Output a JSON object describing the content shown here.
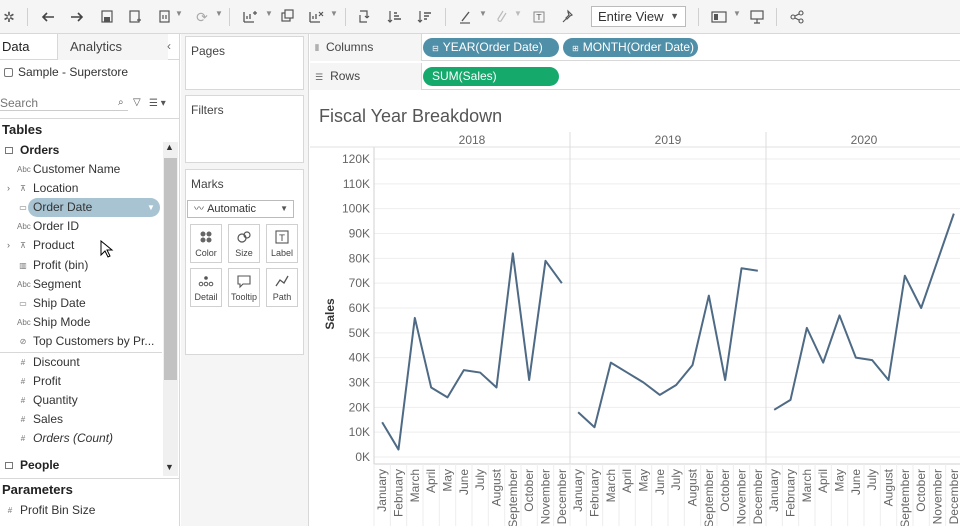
{
  "toolbar": {
    "view_mode": "Entire View"
  },
  "left_pane": {
    "tabs": [
      "Data",
      "Analytics"
    ],
    "data_source": "Sample - Superstore",
    "search_placeholder": "Search",
    "tables_heading": "Tables",
    "orders_group": "Orders",
    "fields": [
      {
        "label": "Customer Name",
        "icon": "Abc",
        "expand": ""
      },
      {
        "label": "Location",
        "icon": "⊼",
        "expand": "›"
      },
      {
        "label": "Order Date",
        "icon": "▭",
        "expand": ""
      },
      {
        "label": "Order ID",
        "icon": "Abc",
        "expand": ""
      },
      {
        "label": "Product",
        "icon": "⊼",
        "expand": "›"
      },
      {
        "label": "Profit (bin)",
        "icon": "▥",
        "expand": ""
      },
      {
        "label": "Segment",
        "icon": "Abc",
        "expand": ""
      },
      {
        "label": "Ship Date",
        "icon": "▭",
        "expand": ""
      },
      {
        "label": "Ship Mode",
        "icon": "Abc",
        "expand": ""
      },
      {
        "label": "Top Customers by Pr...",
        "icon": "⊘",
        "expand": ""
      }
    ],
    "measures": [
      {
        "label": "Discount",
        "icon": "#"
      },
      {
        "label": "Profit",
        "icon": "#"
      },
      {
        "label": "Quantity",
        "icon": "#"
      },
      {
        "label": "Sales",
        "icon": "#"
      },
      {
        "label": "Orders (Count)",
        "icon": "#"
      }
    ],
    "people_group": "People",
    "parameters_heading": "Parameters",
    "parameters": [
      {
        "label": "Profit Bin Size",
        "icon": "#"
      }
    ]
  },
  "cards": {
    "pages": "Pages",
    "filters": "Filters",
    "marks": "Marks",
    "marks_type": "Automatic",
    "mark_buttons": [
      "Color",
      "Size",
      "Label",
      "Detail",
      "Tooltip",
      "Path"
    ]
  },
  "shelves": {
    "columns_label": "Columns",
    "rows_label": "Rows",
    "column_pills": [
      "YEAR(Order Date)",
      "MONTH(Order Date)"
    ],
    "row_pills": [
      "SUM(Sales)"
    ]
  },
  "colors": {
    "line": "#4e6a85",
    "pill_dimension": "#4f8fa8",
    "pill_measure": "#15a96c"
  },
  "chart_data": {
    "type": "line",
    "title": "Fiscal Year Breakdown",
    "ylabel": "Sales",
    "ylim": [
      0,
      120000
    ],
    "yticks": [
      "0K",
      "10K",
      "20K",
      "30K",
      "40K",
      "50K",
      "60K",
      "70K",
      "80K",
      "90K",
      "100K",
      "110K",
      "120K"
    ],
    "ytick_values": [
      0,
      10000,
      20000,
      30000,
      40000,
      50000,
      60000,
      70000,
      80000,
      90000,
      100000,
      110000,
      120000
    ],
    "grid": "horizontal",
    "categories": [
      "January",
      "February",
      "March",
      "April",
      "May",
      "June",
      "July",
      "August",
      "September",
      "October",
      "November",
      "December"
    ],
    "panels": [
      {
        "year": "2018",
        "values": [
          14000,
          3000,
          56000,
          28000,
          24000,
          35000,
          34000,
          28000,
          82000,
          31000,
          79000,
          70000
        ]
      },
      {
        "year": "2019",
        "values": [
          18000,
          12000,
          38000,
          34000,
          30000,
          25000,
          29000,
          37000,
          65000,
          31000,
          76000,
          75000
        ]
      },
      {
        "year": "2020",
        "values": [
          19000,
          23000,
          52000,
          38000,
          57000,
          40000,
          39000,
          31000,
          73000,
          60000,
          79000,
          98000
        ]
      }
    ]
  }
}
